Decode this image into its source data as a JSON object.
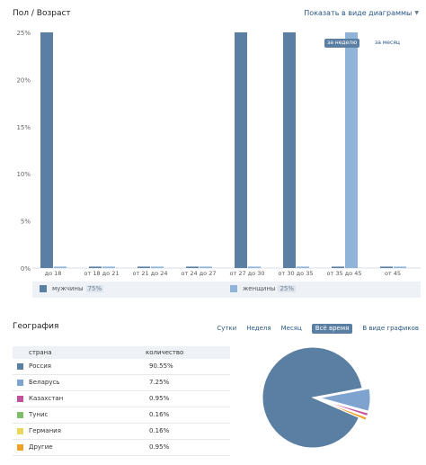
{
  "section1": {
    "title": "Пол / Возраст",
    "show_link": "Показать в виде диаграммы",
    "range_buttons": [
      "за неделю",
      "за месяц"
    ]
  },
  "chart_data": [
    {
      "type": "bar",
      "title": "",
      "categories": [
        "до 18",
        "от 18 до 21",
        "от 21 до 24",
        "от 24 до 27",
        "от 27 до 30",
        "от 30 до 35",
        "от 35 до 45",
        "от 45"
      ],
      "series": [
        {
          "name": "мужчины",
          "values": [
            25,
            0.15,
            0.15,
            0.15,
            25,
            25,
            0.15,
            0.15
          ]
        },
        {
          "name": "женщины",
          "values": [
            0.15,
            0.15,
            0.15,
            0.15,
            0.15,
            0.15,
            25,
            0.15
          ]
        }
      ],
      "yticks": [
        "0%",
        "5%",
        "10%",
        "15%",
        "20%",
        "25%"
      ],
      "ylim": [
        0,
        25
      ],
      "legend": [
        {
          "label": "мужчины",
          "percent": "75%"
        },
        {
          "label": "женщины",
          "percent": "25%"
        }
      ],
      "legend_placement": "bottom",
      "grid": false,
      "colors": {
        "men": "#5b7ea3",
        "women": "#8fb4d7"
      }
    },
    {
      "type": "pie",
      "title": "",
      "labels": [
        "Россия",
        "Беларусь",
        "Казахстан",
        "Тунис",
        "Германия",
        "Другие"
      ],
      "values": [
        90.55,
        7.25,
        0.95,
        0.16,
        0.16,
        0.95
      ],
      "colors": [
        "#5b7ea3",
        "#7fa3cf",
        "#c4529a",
        "#7fbf6a",
        "#e8d75a",
        "#f0a12a"
      ]
    }
  ],
  "geography": {
    "title": "География",
    "tabs": [
      "Сутки",
      "Неделя",
      "Месяц",
      "Всё время",
      "В виде графиков"
    ],
    "active_tab": "Всё время",
    "columns": [
      "страна",
      "количество"
    ],
    "rows": [
      {
        "country": "Россия",
        "value": "90.55%",
        "color": "#5b7ea3"
      },
      {
        "country": "Беларусь",
        "value": "7.25%",
        "color": "#7fa3cf"
      },
      {
        "country": "Казахстан",
        "value": "0.95%",
        "color": "#c4529a"
      },
      {
        "country": "Тунис",
        "value": "0.16%",
        "color": "#7fbf6a"
      },
      {
        "country": "Германия",
        "value": "0.16%",
        "color": "#e8d75a"
      },
      {
        "country": "Другие",
        "value": "0.95%",
        "color": "#f0a12a"
      }
    ]
  }
}
